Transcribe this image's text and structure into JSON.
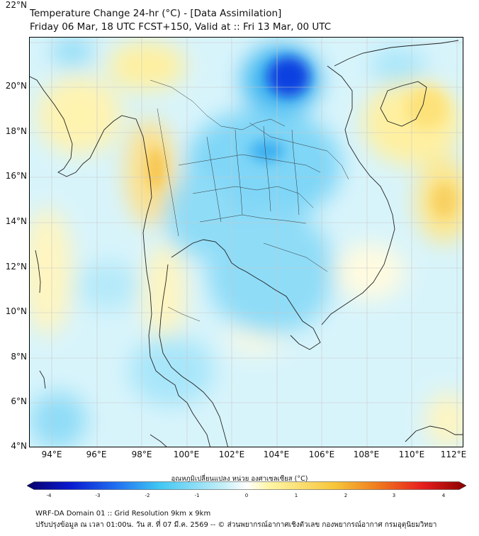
{
  "title_line1": "Temperature Change 24-hr (°C) - [Data Assimilation]",
  "title_line2": "Friday 06 Mar, 18 UTC FCST+150, Valid at :: Fri 13 Mar, 00 UTC",
  "y_ticks": [
    "22°N",
    "20°N",
    "18°N",
    "16°N",
    "14°N",
    "12°N",
    "10°N",
    "8°N",
    "6°N",
    "4°N"
  ],
  "x_ticks": [
    "94°E",
    "96°E",
    "98°E",
    "100°E",
    "102°E",
    "104°E",
    "106°E",
    "108°E",
    "110°E",
    "112°E"
  ],
  "colorbar": {
    "title": "อุณหภูมิเปลี่ยนแปลง หน่วย องศาเซลเซียส (°C)",
    "ticks": [
      "-4",
      "-3",
      "-2",
      "-1",
      "0",
      "1",
      "2",
      "3",
      "4"
    ],
    "colors": [
      "#08006b",
      "#0a1ad0",
      "#1f6df0",
      "#3fc6f3",
      "#c8f0f8",
      "#ffffff",
      "#fff6a8",
      "#f7c63a",
      "#ef7a1e",
      "#e81e1e",
      "#8a0000"
    ]
  },
  "footer_line1": "WRF-DA Domain 01 :: Grid Resolution 9km x 9km",
  "footer_line2": "ปรับปรุงข้อมูล ณ เวลา 01:00น. วัน ส. ที่ 07 มี.ค. 2569 -- © ส่วนพยากรณ์อากาศเชิงตัวเลข กองพยากรณ์อากาศ กรมอุตุนิยมวิทยา"
}
